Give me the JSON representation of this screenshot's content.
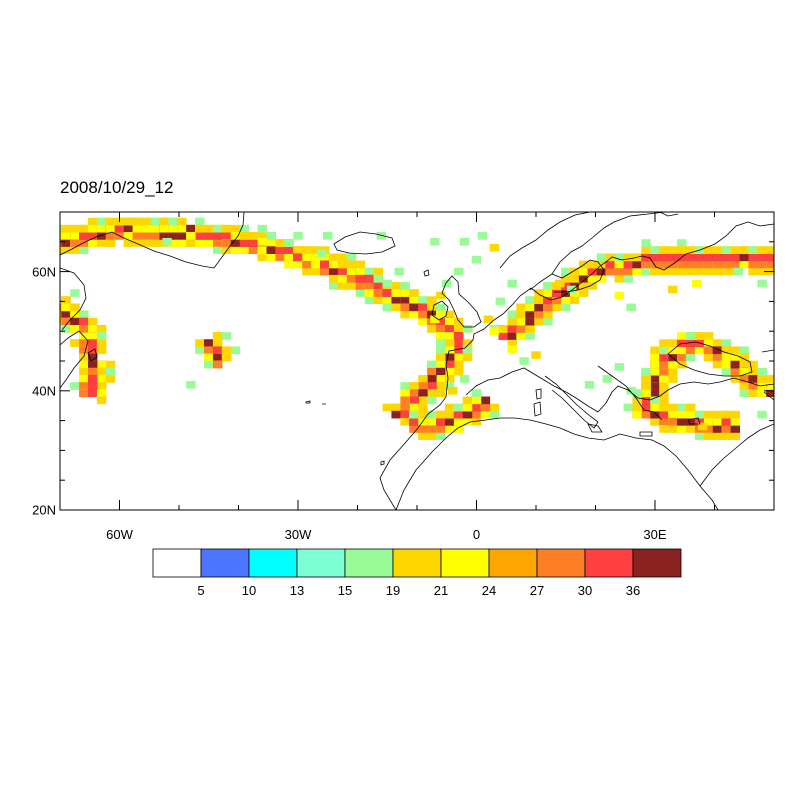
{
  "title": "2008/10/29_12",
  "map": {
    "lon_range": [
      -70,
      50
    ],
    "lat_range": [
      20,
      70
    ],
    "lon_ticks": [
      {
        "value": -60,
        "label": "60W"
      },
      {
        "value": -30,
        "label": "30W"
      },
      {
        "value": 0,
        "label": "0"
      },
      {
        "value": 30,
        "label": "30E"
      }
    ],
    "lat_ticks": [
      {
        "value": 20,
        "label": "20N"
      },
      {
        "value": 40,
        "label": "40N"
      },
      {
        "value": 60,
        "label": "60N"
      }
    ],
    "coastline_color": "#000000"
  },
  "colorbar": {
    "colors": [
      "#ffffff",
      "#4c76ff",
      "#00ffff",
      "#7fffd4",
      "#98fb98",
      "#ffd700",
      "#ffff00",
      "#ffa500",
      "#ff7f27",
      "#ff4040",
      "#8b2222"
    ],
    "labels": [
      "5",
      "10",
      "13",
      "15",
      "19",
      "21",
      "24",
      "27",
      "30",
      "36"
    ]
  },
  "chart_data": {
    "type": "heatmap",
    "title": "2008/10/29_12",
    "x_range": [
      -70,
      50
    ],
    "y_range": [
      20,
      70
    ],
    "levels": [
      5,
      10,
      13,
      15,
      19,
      21,
      24,
      27,
      30,
      36
    ],
    "bands": [
      {
        "name": "",
        "points": [
          [
            -70,
            65
          ],
          [
            -60,
            67
          ],
          [
            -45,
            66
          ],
          [
            -35,
            64
          ],
          [
            -25,
            61
          ],
          [
            -18,
            58
          ],
          [
            -10,
            54
          ],
          [
            -5,
            51
          ],
          [
            -3,
            48
          ],
          [
            -4,
            45
          ],
          [
            -8,
            41
          ],
          [
            -14,
            35
          ]
        ]
      },
      {
        "name": "",
        "points": [
          [
            -10,
            34
          ],
          [
            -4,
            35
          ],
          [
            0,
            37
          ],
          [
            2,
            39
          ]
        ]
      },
      {
        "name": "",
        "points": [
          [
            -70,
            54
          ],
          [
            -66,
            51
          ],
          [
            -64,
            45
          ],
          [
            -65,
            38
          ]
        ]
      },
      {
        "name": "",
        "points": [
          [
            -45,
            48
          ],
          [
            -42,
            44
          ]
        ]
      },
      {
        "name": "",
        "points": [
          [
            5,
            49
          ],
          [
            12,
            55
          ],
          [
            20,
            60
          ],
          [
            30,
            62
          ],
          [
            40,
            62
          ],
          [
            50,
            62
          ]
        ]
      },
      {
        "name": "",
        "points": [
          [
            28,
            36
          ],
          [
            31,
            44
          ],
          [
            35,
            48
          ],
          [
            40,
            47
          ],
          [
            45,
            43
          ],
          [
            50,
            39
          ]
        ]
      },
      {
        "name": "",
        "points": [
          [
            30,
            36
          ],
          [
            35,
            35
          ],
          [
            40,
            34
          ],
          [
            45,
            34
          ]
        ]
      }
    ],
    "scattered_cells": [
      [
        -5,
        58,
        "#98fb98"
      ],
      [
        -3,
        60,
        "#98fb98"
      ],
      [
        -6,
        56,
        "#ffd700"
      ],
      [
        -7,
        52,
        "#ffff00"
      ],
      [
        2,
        52,
        "#ffd700"
      ],
      [
        3,
        50,
        "#ffff00"
      ],
      [
        6,
        47,
        "#ffff00"
      ],
      [
        8,
        45,
        "#98fb98"
      ],
      [
        10,
        46,
        "#ffd700"
      ],
      [
        4,
        55,
        "#98fb98"
      ],
      [
        6,
        58,
        "#98fb98"
      ],
      [
        -15,
        58,
        "#98fb98"
      ],
      [
        -13,
        60,
        "#98fb98"
      ],
      [
        -26,
        63,
        "#98fb98"
      ],
      [
        -30,
        66,
        "#98fb98"
      ],
      [
        -25,
        66,
        "#98fb98"
      ],
      [
        -16,
        66,
        "#98fb98"
      ],
      [
        -48,
        66,
        "#ffff00"
      ],
      [
        -52,
        65,
        "#98fb98"
      ],
      [
        -36,
        65,
        "#ffff00"
      ],
      [
        -2,
        65,
        "#98fb98"
      ],
      [
        1,
        66,
        "#98fb98"
      ],
      [
        3,
        64,
        "#ffd700"
      ],
      [
        0,
        62,
        "#98fb98"
      ],
      [
        -7,
        65,
        "#98fb98"
      ],
      [
        22,
        42,
        "#98fb98"
      ],
      [
        24,
        44,
        "#98fb98"
      ],
      [
        26,
        40,
        "#98fb98"
      ],
      [
        19,
        41,
        "#98fb98"
      ],
      [
        38,
        34,
        "#ffd700"
      ],
      [
        48,
        36,
        "#98fb98"
      ],
      [
        14,
        58,
        "#ffd700"
      ],
      [
        16,
        57,
        "#98fb98"
      ],
      [
        24,
        56,
        "#ffff00"
      ],
      [
        26,
        54,
        "#98fb98"
      ],
      [
        33,
        57,
        "#ffd700"
      ],
      [
        37,
        58,
        "#ffff00"
      ],
      [
        44,
        60,
        "#98fb98"
      ],
      [
        48,
        58,
        "#98fb98"
      ],
      [
        -4,
        40,
        "#ffd700"
      ],
      [
        -2,
        42,
        "#98fb98"
      ],
      [
        -48,
        41,
        "#98fb98"
      ]
    ]
  }
}
